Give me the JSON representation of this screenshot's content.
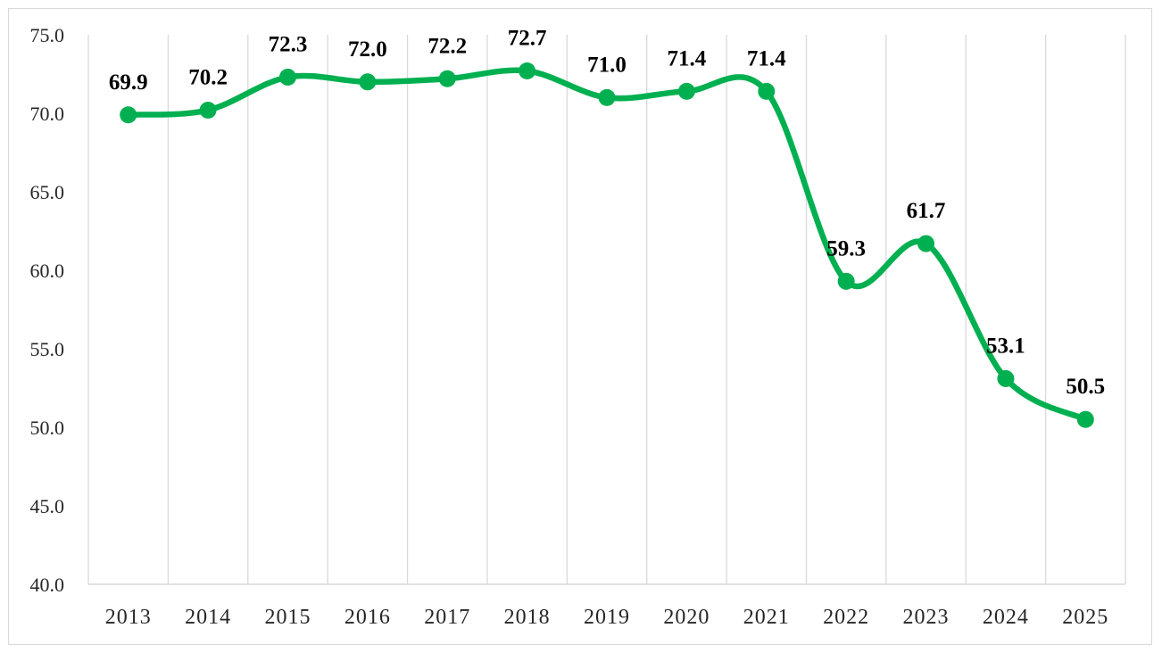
{
  "chart_data": {
    "type": "line",
    "smooth": true,
    "x": [
      "2013",
      "2014",
      "2015",
      "2016",
      "2017",
      "2018",
      "2019",
      "2020",
      "2021",
      "2022",
      "2023",
      "2024",
      "2025"
    ],
    "series": [
      {
        "values": [
          69.9,
          70.2,
          72.3,
          72.0,
          72.2,
          72.7,
          71.0,
          71.4,
          71.4,
          59.3,
          61.7,
          53.1,
          50.5
        ],
        "data_labels": [
          "69.9",
          "70.2",
          "72.3",
          "72.0",
          "72.2",
          "72.7",
          "71.0",
          "71.4",
          "71.4",
          "59.3",
          "61.7",
          "53.1",
          "50.5"
        ],
        "color": "#00b050"
      }
    ],
    "yticks": [
      "40.0",
      "45.0",
      "50.0",
      "55.0",
      "60.0",
      "65.0",
      "70.0",
      "75.0"
    ],
    "ylim": [
      40,
      75
    ],
    "title": "",
    "xlabel": "",
    "ylabel": "",
    "grid": "vertical",
    "gridline_color": "#d9d9d9",
    "legend": "none"
  }
}
